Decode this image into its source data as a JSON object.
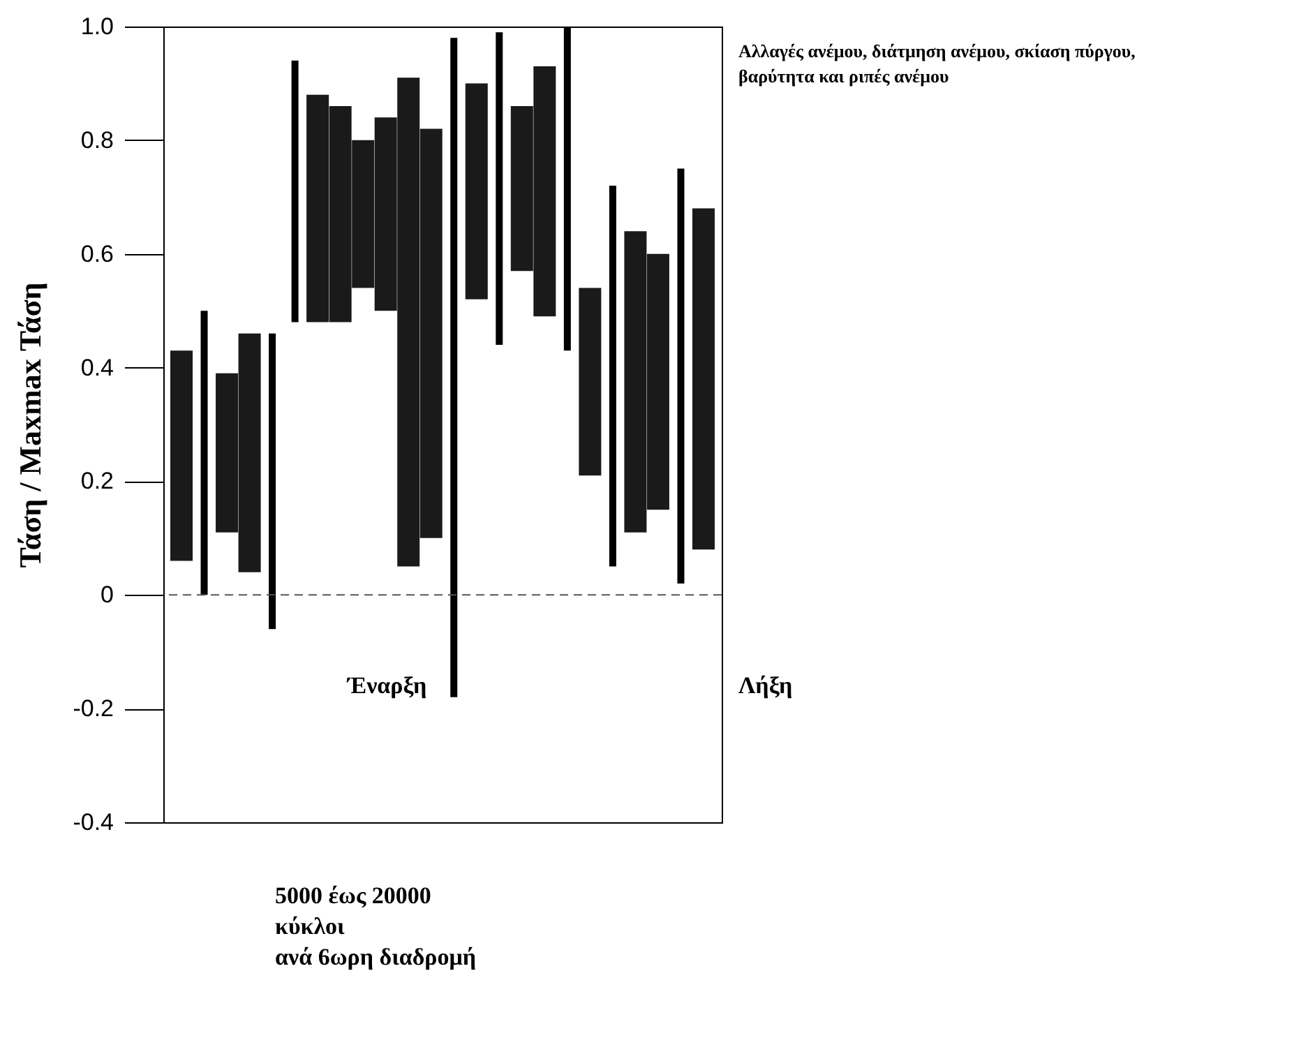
{
  "chart_data": {
    "type": "bar",
    "ylabel": "Τάση / Maxmax Τάση",
    "categories": [
      null,
      null,
      null,
      null,
      null,
      null,
      null,
      null,
      null,
      null,
      null,
      null,
      null,
      null,
      null,
      null,
      null,
      null,
      null,
      null,
      null,
      null,
      null,
      null
    ],
    "series": [
      {
        "color": "#1a1a1a",
        "base": [
          0.06,
          null,
          0.11,
          0.04,
          null,
          null,
          0.48,
          0.48,
          0.54,
          0.5,
          0.05,
          0.1,
          null,
          0.52,
          null,
          0.57,
          0.49,
          null,
          0.21,
          null,
          0.11,
          0.15,
          null,
          0.08
        ],
        "values": [
          0.37,
          null,
          0.28,
          0.42,
          null,
          null,
          0.4,
          0.38,
          0.26,
          0.34,
          0.86,
          0.72,
          null,
          0.38,
          null,
          0.29,
          0.44,
          null,
          0.33,
          null,
          0.53,
          0.45,
          null,
          0.6
        ]
      },
      {
        "color": "#000000",
        "base": [
          null,
          0.0,
          null,
          null,
          -0.06,
          0.48,
          null,
          null,
          null,
          null,
          null,
          null,
          -0.18,
          null,
          0.44,
          null,
          null,
          0.43,
          null,
          0.05,
          null,
          null,
          0.02,
          null
        ],
        "values": [
          null,
          0.5,
          null,
          null,
          0.52,
          0.46,
          null,
          null,
          null,
          null,
          null,
          null,
          1.16,
          null,
          0.55,
          null,
          null,
          0.57,
          null,
          0.67,
          null,
          null,
          0.73,
          null
        ]
      }
    ],
    "ylim": [
      -0.4,
      1.0
    ],
    "yticks": [
      {
        "value": -0.4,
        "label": "-0.4"
      },
      {
        "value": -0.2,
        "label": "-0.2"
      },
      0,
      0.2,
      0.4,
      0.6,
      0.8,
      {
        "value": 1.0,
        "label": "1.0"
      }
    ],
    "tick_labels": "y",
    "grid": false,
    "ref_lines": [
      {
        "axis": "y",
        "value": 0,
        "line_style": "dashed",
        "color": "#555555"
      }
    ],
    "annotations": [
      "Αλλαγές ανέμου, διάτμηση ανέμου, σκίαση πύργου, βαρύτητα και ριπές ανέμου",
      "Έναρξη",
      "Λήξη",
      "5000 έως 20000 κύκλοι ανά 6ωρη διαδρομή"
    ]
  }
}
